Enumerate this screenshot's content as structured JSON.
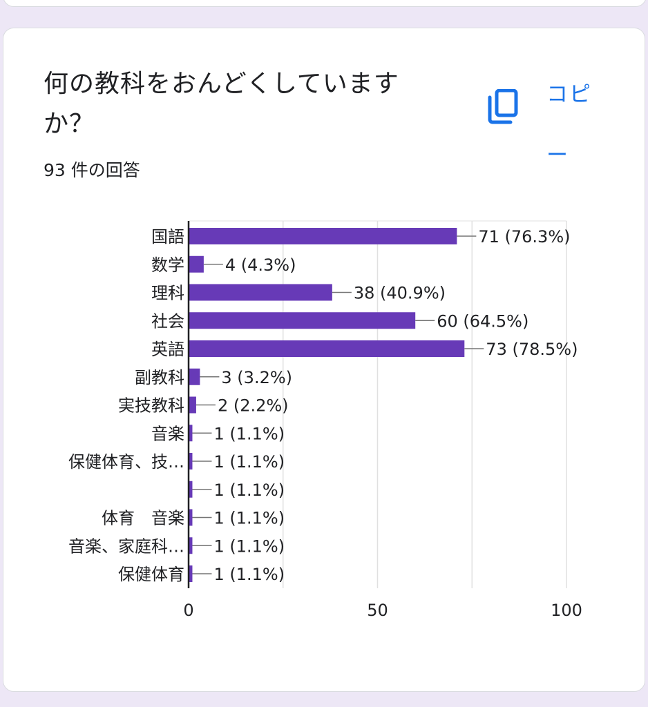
{
  "question": {
    "title": "何の教科をおんどくしていますか？",
    "response_count": "93 件の回答",
    "copy_label": "コピー"
  },
  "colors": {
    "bar": "#673ab7",
    "accent": "#1a73e8",
    "background": "#ede7f6",
    "text": "#202124"
  },
  "icons": {
    "copy": "copy-icon"
  },
  "chart_data": {
    "type": "bar",
    "orientation": "horizontal",
    "categories": [
      "国語",
      "数学",
      "理科",
      "社会",
      "英語",
      "副教科",
      "実技教科",
      "音楽",
      "保健体育、技…",
      "",
      "体育　音楽",
      "音楽、家庭科…",
      "保健体育"
    ],
    "values": [
      71,
      4,
      38,
      60,
      73,
      3,
      2,
      1,
      1,
      1,
      1,
      1,
      1
    ],
    "data_labels": [
      "71 (76.3%)",
      "4 (4.3%)",
      "38 (40.9%)",
      "60 (64.5%)",
      "73 (78.5%)",
      "3 (3.2%)",
      "2 (2.2%)",
      "1 (1.1%)",
      "1 (1.1%)",
      "1 (1.1%)",
      "1 (1.1%)",
      "1 (1.1%)",
      "1 (1.1%)"
    ],
    "xlim": [
      0,
      100
    ],
    "x_ticks": [
      0,
      50,
      100
    ],
    "gridlines": [
      0,
      25,
      50,
      75,
      100
    ],
    "grid": true
  }
}
